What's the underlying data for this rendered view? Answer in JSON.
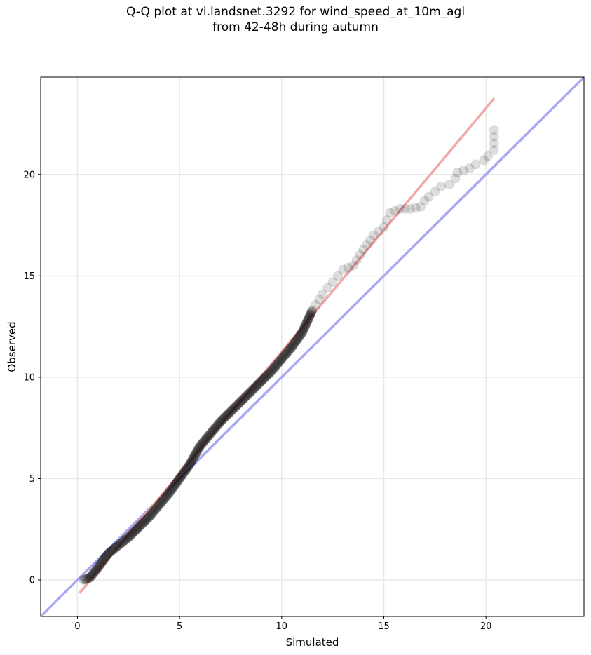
{
  "chart_data": {
    "type": "scatter",
    "title_lines": [
      "Q-Q plot at vi.landsnet.3292 for wind_speed_at_10m_agl",
      "from 42-48h during autumn"
    ],
    "xlabel": "Simulated",
    "ylabel": "Observed",
    "xlim": [
      -1.8,
      24.8
    ],
    "ylim": [
      -1.8,
      24.8
    ],
    "xticks": [
      0,
      5,
      10,
      15,
      20
    ],
    "yticks": [
      0,
      5,
      10,
      15,
      20
    ],
    "grid": true,
    "quantile_path": [
      [
        0.3,
        0.0
      ],
      [
        0.6,
        0.1
      ],
      [
        1.0,
        0.6
      ],
      [
        1.5,
        1.3
      ],
      [
        2.0,
        1.7
      ],
      [
        2.5,
        2.1
      ],
      [
        3.0,
        2.6
      ],
      [
        3.5,
        3.1
      ],
      [
        4.0,
        3.7
      ],
      [
        4.5,
        4.3
      ],
      [
        5.0,
        5.0
      ],
      [
        5.5,
        5.7
      ],
      [
        6.0,
        6.6
      ],
      [
        6.5,
        7.2
      ],
      [
        7.0,
        7.8
      ],
      [
        7.5,
        8.3
      ],
      [
        8.0,
        8.8
      ],
      [
        8.5,
        9.3
      ],
      [
        9.0,
        9.8
      ],
      [
        9.5,
        10.3
      ],
      [
        10.0,
        10.9
      ],
      [
        10.5,
        11.5
      ],
      [
        11.0,
        12.2
      ],
      [
        11.5,
        13.3
      ],
      [
        12.0,
        14.1
      ],
      [
        12.5,
        14.7
      ],
      [
        13.0,
        15.3
      ],
      [
        13.5,
        15.5
      ],
      [
        14.0,
        16.3
      ],
      [
        14.5,
        17.0
      ],
      [
        15.0,
        17.4
      ],
      [
        15.3,
        18.1
      ],
      [
        15.8,
        18.3
      ],
      [
        16.3,
        18.3
      ],
      [
        16.8,
        18.4
      ],
      [
        17.0,
        18.7
      ],
      [
        17.2,
        18.9
      ],
      [
        17.8,
        19.4
      ],
      [
        18.2,
        19.5
      ],
      [
        18.5,
        19.8
      ],
      [
        18.6,
        20.1
      ],
      [
        19.2,
        20.3
      ],
      [
        19.5,
        20.5
      ],
      [
        19.9,
        20.7
      ],
      [
        20.1,
        20.9
      ],
      [
        20.4,
        21.2
      ],
      [
        20.4,
        22.2
      ]
    ],
    "reference_line": {
      "x": [
        -1.8,
        24.8
      ],
      "y": [
        -1.8,
        24.8
      ],
      "color": "#a9a9f2"
    },
    "fit_line": {
      "x": [
        0.1,
        20.4
      ],
      "y": [
        -0.65,
        23.75
      ],
      "color": "#f4a9a9"
    },
    "colors": {
      "points": "#000000",
      "axis": "#000000",
      "grid": "#e8e8e8"
    }
  }
}
